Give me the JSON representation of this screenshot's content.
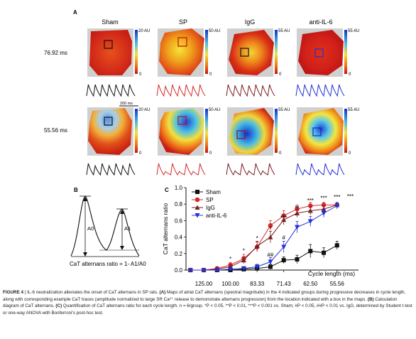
{
  "panels": {
    "a": "A",
    "b": "B",
    "c": "C"
  },
  "groups": [
    "Sham",
    "SP",
    "IgG",
    "anti-IL-6"
  ],
  "rows": [
    "76.92 ms",
    "55.56 ms"
  ],
  "colorbars": {
    "row1": [
      {
        "max": "20 AU",
        "min": "0"
      },
      {
        "max": "50 AU",
        "min": "0"
      },
      {
        "max": "55 AU",
        "min": "0"
      },
      {
        "max": "55 AU",
        "min": "0"
      }
    ],
    "row2": [
      {
        "max": "20 AU",
        "min": "0"
      },
      {
        "max": "50 AU",
        "min": "0"
      },
      {
        "max": "55 AU",
        "min": "0"
      },
      {
        "max": "55 AU",
        "min": "0"
      }
    ]
  },
  "scalebar": "200 ms",
  "diagram": {
    "a0": "A0",
    "a1": "A1",
    "formula": "CaT alternans ratio = 1- A1/A0"
  },
  "trace_colors": {
    "Sham": "#111111",
    "SP": "#d42a2a",
    "IgG": "#7a1e22",
    "anti-IL-6": "#2232d6"
  },
  "chart_data": {
    "type": "line",
    "xlabel": "Cycle length (ms)",
    "ylabel": "CaT alternans  ratio",
    "x_ticks": [
      "125.00",
      "100.00",
      "83.33",
      "71.43",
      "62.50",
      "55.56"
    ],
    "y_ticks": [
      "0.0",
      "0.2",
      "0.4",
      "0.6",
      "0.8",
      "1.0"
    ],
    "ylim": [
      0,
      1.0
    ],
    "x": [
      142.86,
      125.0,
      111.11,
      100.0,
      90.91,
      83.33,
      76.92,
      71.43,
      66.67,
      62.5,
      58.82,
      55.56
    ],
    "series": [
      {
        "name": "Sham",
        "color": "#111111",
        "marker": "square",
        "values": [
          0.0,
          0.0,
          0.0,
          0.0,
          0.01,
          0.02,
          0.04,
          0.12,
          0.13,
          0.23,
          0.21,
          0.3
        ],
        "errors": [
          0.01,
          0.01,
          0.01,
          0.01,
          0.01,
          0.02,
          0.03,
          0.04,
          0.05,
          0.08,
          0.06,
          0.05
        ]
      },
      {
        "name": "SP",
        "color": "#d42a2a",
        "marker": "circle",
        "values": [
          0.0,
          0.0,
          0.02,
          0.06,
          0.14,
          0.28,
          0.54,
          0.66,
          0.74,
          0.78,
          0.79,
          0.79
        ],
        "errors": [
          0.01,
          0.01,
          0.02,
          0.03,
          0.05,
          0.06,
          0.06,
          0.06,
          0.05,
          0.04,
          0.03,
          0.03
        ]
      },
      {
        "name": "IgG",
        "color": "#7a1e22",
        "marker": "triangle",
        "values": [
          0.0,
          0.0,
          0.01,
          0.04,
          0.12,
          0.29,
          0.4,
          0.61,
          0.69,
          0.72,
          0.74,
          0.79
        ],
        "errors": [
          0.01,
          0.01,
          0.02,
          0.03,
          0.04,
          0.06,
          0.07,
          0.06,
          0.05,
          0.05,
          0.04,
          0.03
        ]
      },
      {
        "name": "anti-IL-6",
        "color": "#2232d6",
        "marker": "triangle-down",
        "values": [
          0.0,
          0.0,
          0.0,
          0.01,
          0.02,
          0.04,
          0.1,
          0.28,
          0.52,
          0.59,
          0.69,
          0.78
        ],
        "errors": [
          0.01,
          0.01,
          0.01,
          0.01,
          0.02,
          0.03,
          0.05,
          0.07,
          0.07,
          0.06,
          0.05,
          0.04
        ]
      }
    ],
    "annotations": [
      {
        "label": "*",
        "x": 100.0,
        "y": 0.11
      },
      {
        "label": "*",
        "x": 90.91,
        "y": 0.21
      },
      {
        "label": "*",
        "x": 83.33,
        "y": 0.36
      },
      {
        "label": "*",
        "x": 76.92,
        "y": 0.48
      },
      {
        "label": "##",
        "x": 76.92,
        "y": 0.16
      },
      {
        "label": "***",
        "x": 71.43,
        "y": 0.61
      },
      {
        "label": "#",
        "x": 71.43,
        "y": 0.37
      },
      {
        "label": "**",
        "x": 66.67,
        "y": 0.73
      },
      {
        "label": "***",
        "x": 62.5,
        "y": 0.82
      },
      {
        "label": "***",
        "x": 58.82,
        "y": 0.85
      },
      {
        "label": "***",
        "x": 55.56,
        "y": 0.86
      },
      {
        "label": "***",
        "x": 52.63,
        "y": 0.87
      }
    ],
    "legend_position": "top-left"
  },
  "caption": {
    "figure": "FIGURE 4",
    "title": " | IL-6 neutralization alleviates the onset of CaT alternans in SP rats.",
    "a_label": " (A)",
    "a_text": " Maps of atrial CaT alternans (spectral magnitude) in the 4 indicated groups during progressive decreases in cycle length, along with corresponding example CaT traces (amplitude normalized to large SR Ca²⁺ release to demonstrate alternans progression) from the location indicated with a box in the maps.",
    "b_label": " (B)",
    "b_text": " Calculation diagram of CaT alternans.",
    "c_label": " (C)",
    "c_text": " Quantification of CaT alternans ratio for each cycle length. n = 6/group. *P < 0.05, **P < 0.01, ***P < 0.001 vs. Sham; #P < 0.05, ##P < 0.01 vs. IgG, determined by Student t-test or one-way ANOVA with Bonferroni's post-hoc test."
  }
}
